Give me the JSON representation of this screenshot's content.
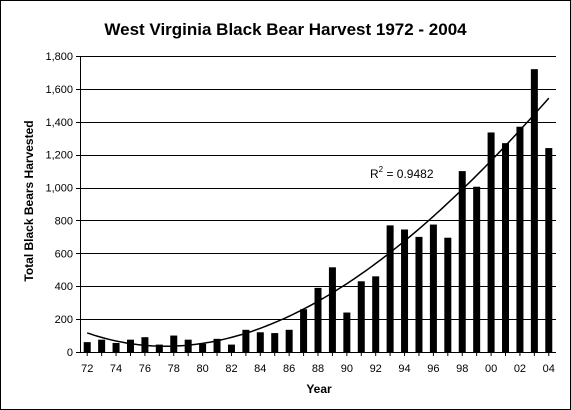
{
  "chart_data": {
    "type": "bar",
    "title": "West Virginia Black Bear Harvest 1972 - 2004",
    "xlabel": "Year",
    "ylabel": "Total Black Bears Harvested",
    "ylim": [
      0,
      1800
    ],
    "yticks": [
      0,
      200,
      400,
      600,
      800,
      1000,
      1200,
      1400,
      1600,
      1800
    ],
    "ytick_labels": [
      "0",
      "200",
      "400",
      "600",
      "800",
      "1,000",
      "1,200",
      "1,400",
      "1,600",
      "1,800"
    ],
    "categories": [
      "72",
      "73",
      "74",
      "75",
      "76",
      "77",
      "78",
      "79",
      "80",
      "81",
      "82",
      "83",
      "84",
      "85",
      "86",
      "87",
      "88",
      "89",
      "90",
      "91",
      "92",
      "93",
      "94",
      "95",
      "96",
      "97",
      "98",
      "99",
      "00",
      "01",
      "02",
      "03",
      "04"
    ],
    "xtick_labels": [
      "72",
      "74",
      "76",
      "78",
      "80",
      "82",
      "84",
      "86",
      "88",
      "90",
      "92",
      "94",
      "96",
      "98",
      "00",
      "02",
      "04"
    ],
    "values": [
      60,
      75,
      55,
      75,
      90,
      45,
      100,
      75,
      50,
      80,
      45,
      135,
      120,
      115,
      135,
      260,
      390,
      515,
      240,
      430,
      460,
      770,
      745,
      700,
      775,
      695,
      1100,
      1005,
      1335,
      1270,
      1370,
      1720,
      1240
    ],
    "trendline": {
      "type": "polynomial",
      "r2_label": "R² = 0.9482",
      "r2_base": "R",
      "r2_sup": "2",
      "r2_rest": " = 0.9482"
    },
    "grid": true,
    "colors": {
      "bar": "#000000",
      "grid": "#000000",
      "trend": "#000000"
    }
  }
}
